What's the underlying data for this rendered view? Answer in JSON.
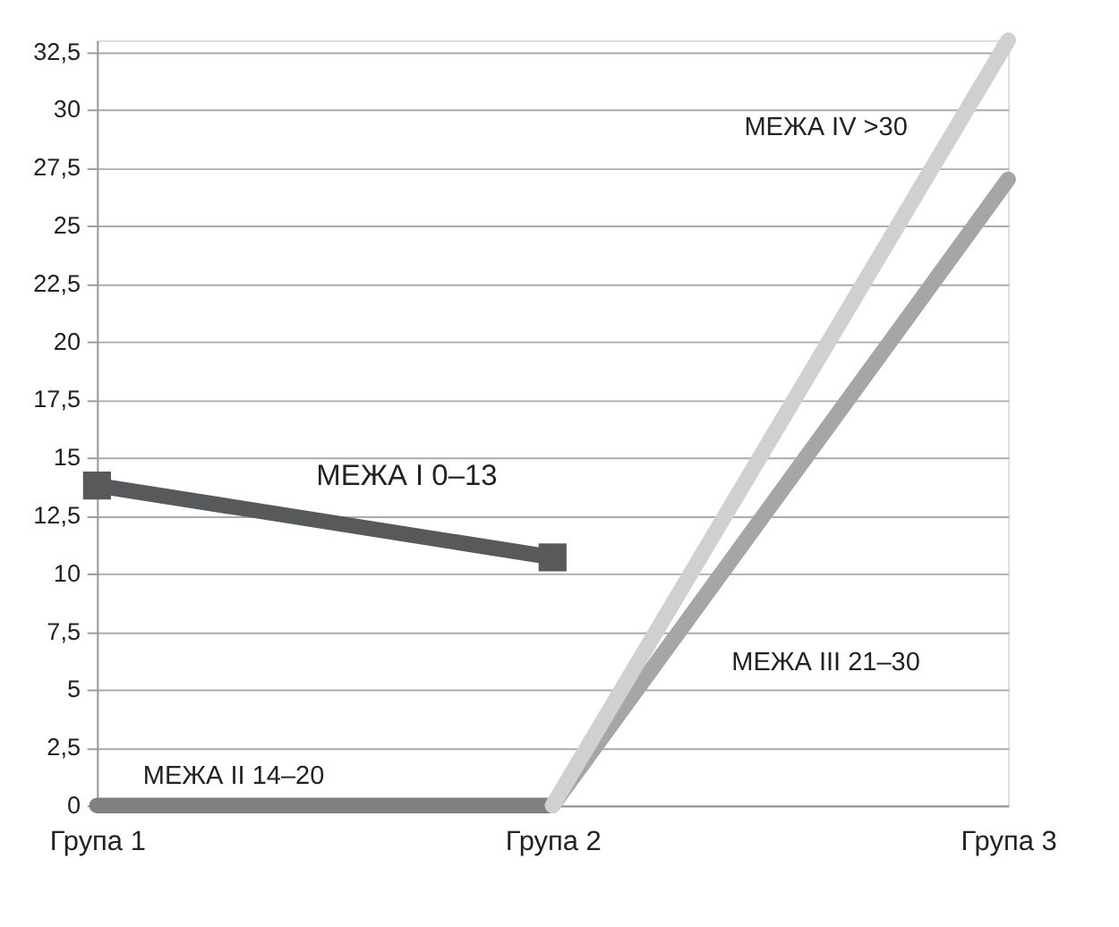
{
  "chart_data": {
    "type": "line",
    "categories": [
      "Група 1",
      "Група 2",
      "Група 3"
    ],
    "series": [
      {
        "name": "МЕЖА I 0–13",
        "color": "#58595b",
        "values": [
          13.8,
          10.7,
          null
        ],
        "marker": "square"
      },
      {
        "name": "МЕЖА II 14–20",
        "color": "#808080",
        "values": [
          0,
          0,
          null
        ],
        "marker": "none"
      },
      {
        "name": "МЕЖА III 21–30",
        "color": "#a6a6a6",
        "values": [
          null,
          0,
          27
        ],
        "marker": "none"
      },
      {
        "name": "МЕЖА IV >30",
        "color": "#d0d0d0",
        "values": [
          null,
          0,
          33
        ],
        "marker": "none"
      }
    ],
    "ylim": [
      0,
      33
    ],
    "yticks": [
      0,
      {
        "value": 2.5,
        "label": "2,5"
      },
      5,
      {
        "value": 7.5,
        "label": "7,5"
      },
      10,
      {
        "value": 12.5,
        "label": "12,5"
      },
      15,
      {
        "value": 17.5,
        "label": "17,5"
      },
      20,
      {
        "value": 22.5,
        "label": "22,5"
      },
      25,
      {
        "value": 27.5,
        "label": "27,5"
      },
      30,
      {
        "value": 32.5,
        "label": "32,5"
      }
    ],
    "grid": "y",
    "legend": false
  }
}
